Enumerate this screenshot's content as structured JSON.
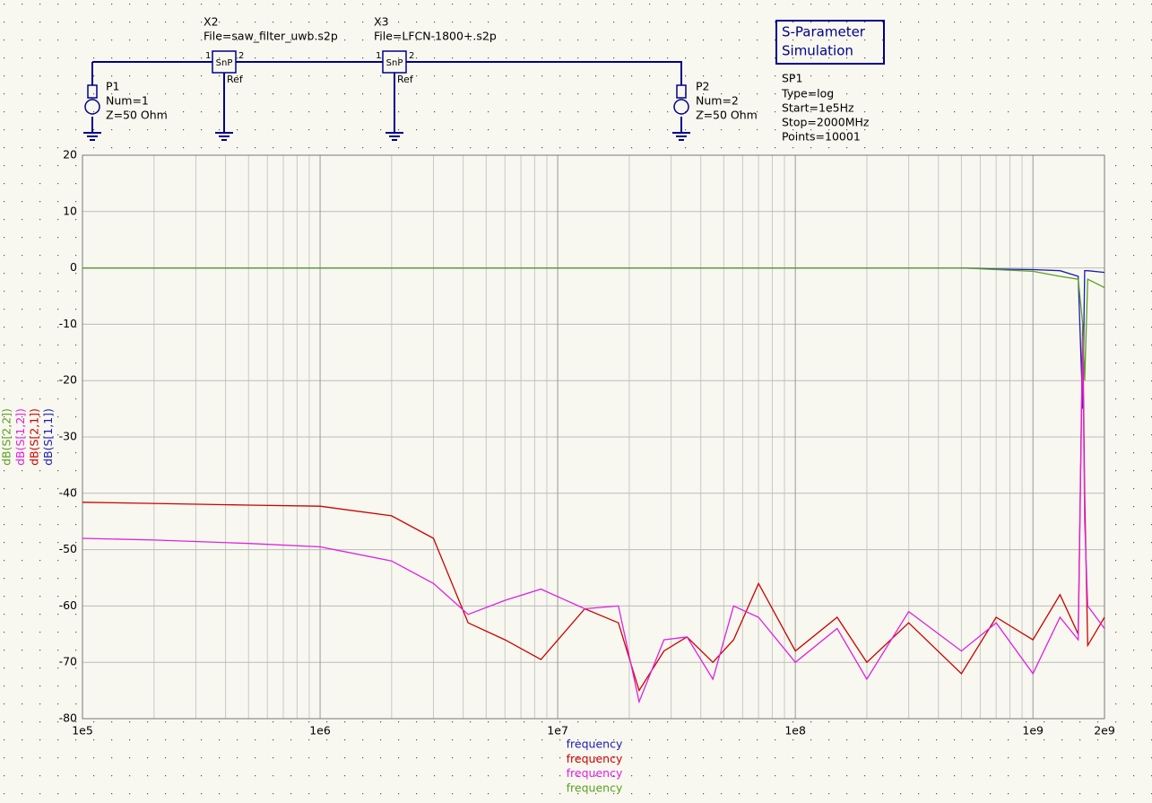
{
  "schematic": {
    "x2": {
      "name": "X2",
      "file": "File=saw_filter_uwb.s2p",
      "symbol": "SnP",
      "ref": "Ref",
      "pin1": "1",
      "pin2": "2"
    },
    "x3": {
      "name": "X3",
      "file": "File=LFCN-1800+.s2p",
      "symbol": "SnP",
      "ref": "Ref",
      "pin1": "1",
      "pin2": "2"
    },
    "p1": {
      "name": "P1",
      "num": "Num=1",
      "z": "Z=50 Ohm"
    },
    "p2": {
      "name": "P2",
      "num": "Num=2",
      "z": "Z=50 Ohm"
    },
    "sim": {
      "title_line1": "S-Parameter",
      "title_line2": "Simulation",
      "name": "SP1",
      "type": "Type=log",
      "start": "Start=1e5Hz",
      "stop": "Stop=2000MHz",
      "points": "Points=10001"
    }
  },
  "chart_data": {
    "type": "line",
    "log_x": true,
    "grid": true,
    "xlim": [
      100000,
      2000000000
    ],
    "xticks": [
      {
        "value": 100000,
        "label": "1e5"
      },
      {
        "value": 1000000,
        "label": "1e6"
      },
      {
        "value": 10000000,
        "label": "1e7"
      },
      {
        "value": 100000000,
        "label": "1e8"
      },
      {
        "value": 1000000000,
        "label": "1e9"
      },
      {
        "value": 2000000000,
        "label": "2e9"
      }
    ],
    "ylim": [
      -80,
      20
    ],
    "yticks": [
      20,
      10,
      0,
      -10,
      -20,
      -30,
      -40,
      -50,
      -60,
      -70,
      -80
    ],
    "x": [
      100000,
      200000,
      500000,
      1000000,
      2000000,
      3000000,
      4200000,
      6000000,
      8500000,
      13000000,
      18000000,
      22000000,
      28000000,
      35000000,
      45000000,
      55000000,
      70000000,
      100000000,
      150000000,
      200000000,
      300000000,
      500000000,
      700000000,
      1000000000,
      1300000000,
      1550000000,
      1620000000,
      1650000000,
      1700000000,
      2000000000
    ],
    "series": [
      {
        "name": "dB(S[1,1])",
        "color": "#1a1ab8",
        "x_label": "frequency",
        "values": [
          0,
          0,
          0,
          0,
          0,
          0,
          0,
          0,
          0,
          0,
          0,
          0,
          0,
          0,
          0,
          0,
          0,
          0,
          0,
          0,
          0,
          0,
          -0.2,
          -0.3,
          -0.5,
          -1.5,
          -25,
          -0.5,
          -0.5,
          -0.8
        ]
      },
      {
        "name": "dB(S[2,1])",
        "color": "#cc0000",
        "x_label": "frequency",
        "values": [
          -41.6,
          -41.8,
          -42.1,
          -42.3,
          -44,
          -48,
          -63,
          -66,
          -69.5,
          -60.5,
          -63,
          -75,
          -68,
          -65.5,
          -70,
          -66,
          -56,
          -68,
          -62,
          -70,
          -63,
          -72,
          -62,
          -66,
          -58,
          -65,
          -10,
          -40,
          -67,
          -62
        ]
      },
      {
        "name": "dB(S[1,2])",
        "color": "#e020e0",
        "x_label": "frequency",
        "values": [
          -48,
          -48.3,
          -48.9,
          -49.5,
          -52,
          -56,
          -61.5,
          -59,
          -57,
          -60.5,
          -60,
          -77,
          -66,
          -65.5,
          -73,
          -60,
          -62,
          -70,
          -64,
          -73,
          -61,
          -68,
          -63,
          -72,
          -62,
          -66,
          -12,
          -45,
          -60,
          -64
        ]
      },
      {
        "name": "dB(S[2,2])",
        "color": "#5aa020",
        "x_label": "frequency",
        "values": [
          0,
          0,
          0,
          0,
          0,
          0,
          0,
          0,
          0,
          0,
          0,
          0,
          0,
          0,
          0,
          0,
          0,
          0,
          0,
          0,
          0,
          0,
          -0.3,
          -0.6,
          -1.5,
          -2,
          -10,
          -20,
          -2,
          -3.5
        ]
      }
    ]
  }
}
